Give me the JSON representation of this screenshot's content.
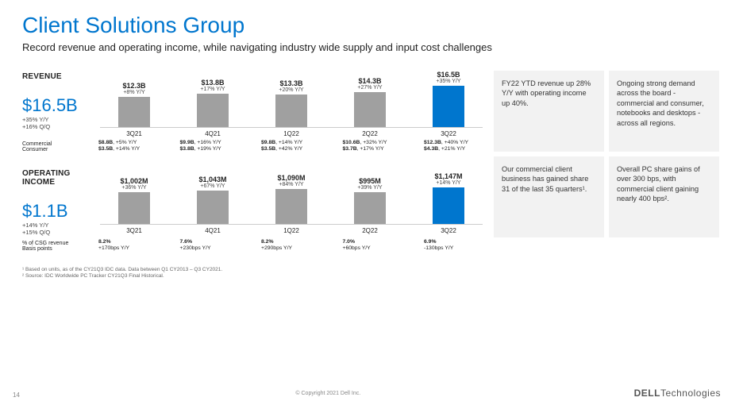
{
  "title": "Client Solutions Group",
  "subtitle": "Record revenue and operating income, while navigating industry wide supply and input cost challenges",
  "revenue": {
    "name": "REVENUE",
    "headline": "$16.5B",
    "sub1": "+35% Y/Y",
    "sub2": "+16% Q/Q",
    "quarters": [
      "3Q21",
      "4Q21",
      "1Q22",
      "2Q22",
      "3Q22"
    ],
    "values": [
      "$12.3B",
      "$13.8B",
      "$13.3B",
      "$14.3B",
      "$16.5B"
    ],
    "growth": [
      "+8% Y/Y",
      "+17% Y/Y",
      "+20% Y/Y",
      "+27% Y/Y",
      "+35% Y/Y"
    ],
    "heights": [
      38,
      42,
      41,
      44,
      52
    ],
    "highlight_index": 4,
    "row1_label": "Commercial",
    "row2_label": "Consumer",
    "row1": [
      "$8.8B,  +5% Y/Y",
      "$9.9B,  +16% Y/Y",
      "$9.8B,  +14% Y/Y",
      "$10.6B,  +32% Y/Y",
      "$12.3B,  +40% Y/Y"
    ],
    "row2": [
      "$3.5B,  +14% Y/Y",
      "$3.8B,  +19% Y/Y",
      "$3.5B,  +42% Y/Y",
      "$3.7B,  +17% Y/Y",
      "$4.3B,  +21% Y/Y"
    ]
  },
  "opincome": {
    "name": "OPERATING INCOME",
    "headline": "$1.1B",
    "sub1": "+14% Y/Y",
    "sub2": "+15% Q/Q",
    "quarters": [
      "3Q21",
      "4Q21",
      "1Q22",
      "2Q22",
      "3Q22"
    ],
    "values": [
      "$1,002M",
      "$1,043M",
      "$1,090M",
      "$995M",
      "$1,147M"
    ],
    "growth": [
      "+36% Y/Y",
      "+67% Y/Y",
      "+84% Y/Y",
      "+39% Y/Y",
      "+14% Y/Y"
    ],
    "heights": [
      40,
      42,
      44,
      40,
      46
    ],
    "highlight_index": 4,
    "row1_label": "% of CSG revenue",
    "row2_label": "Basis points",
    "row1": [
      "8.2%",
      "7.6%",
      "8.2%",
      "7.0%",
      "6.9%"
    ],
    "row2": [
      "+170bps Y/Y",
      "+230bps Y/Y",
      "+290bps Y/Y",
      "+60bps Y/Y",
      "-130bps Y/Y"
    ]
  },
  "boxes": [
    "FY22 YTD revenue up 28% Y/Y with operating income up 40%.",
    "Ongoing strong demand across the board - commercial and consumer, notebooks and desktops - across all regions.",
    "Our commercial client business has gained share 31 of the last 35 quarters¹.",
    "Overall PC share gains of over 300 bps, with commercial client gaining nearly 400 bps²."
  ],
  "footnotes": {
    "f1": "¹ Based on units, as of the CY21Q3 IDC data.  Data between Q1 CY2013 – Q3 CY2021.",
    "f2": "² Source: IDC Worldwide PC Tracker CY21Q3 Final Historical."
  },
  "copyright": "© Copyright 2021 Dell Inc.",
  "pagenum": "14",
  "logo": {
    "brand": "DELL",
    "suffix": "Technologies"
  }
}
